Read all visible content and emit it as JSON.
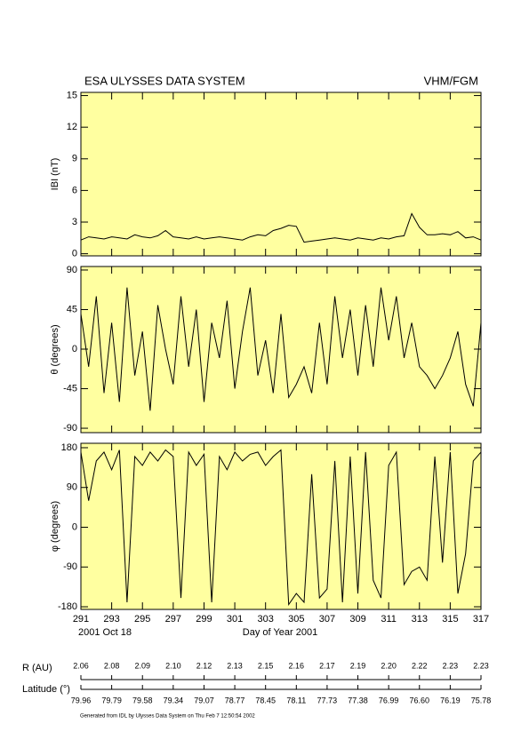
{
  "header": {
    "title": "ESA ULYSSES DATA SYSTEM",
    "instrument": "VHM/FGM"
  },
  "chart_data": [
    {
      "type": "line",
      "ylabel": "IBI (nT)",
      "xlim": [
        291,
        317
      ],
      "ylim": [
        -0.2,
        15.3
      ],
      "yticks": [
        0,
        3,
        6,
        9,
        12,
        15
      ],
      "x": [
        291,
        291.5,
        292,
        292.5,
        293,
        293.5,
        294,
        294.5,
        295,
        295.5,
        296,
        296.5,
        297,
        297.5,
        298,
        298.5,
        299,
        299.5,
        300,
        300.5,
        301,
        301.5,
        302,
        302.5,
        303,
        303.5,
        304,
        304.5,
        305,
        305.5,
        306,
        306.5,
        307,
        307.5,
        308,
        308.5,
        309,
        309.5,
        310,
        310.5,
        311,
        311.5,
        312,
        312.5,
        313,
        313.5,
        314,
        314.5,
        315,
        315.5,
        316,
        316.5,
        317
      ],
      "series": [
        {
          "color": "#000000",
          "values": [
            1.3,
            1.6,
            1.5,
            1.4,
            1.6,
            1.5,
            1.4,
            1.8,
            1.6,
            1.5,
            1.7,
            2.2,
            1.6,
            1.5,
            1.4,
            1.6,
            1.4,
            1.5,
            1.6,
            1.5,
            1.4,
            1.3,
            1.6,
            1.8,
            1.7,
            2.2,
            2.4,
            2.7,
            2.6,
            1.1,
            1.2,
            1.3,
            1.4,
            1.5,
            1.4,
            1.3,
            1.5,
            1.4,
            1.3,
            1.5,
            1.4,
            1.6,
            1.7,
            3.8,
            2.5,
            1.8,
            1.8,
            1.9,
            1.8,
            2.1,
            1.5,
            1.6,
            1.3
          ]
        }
      ]
    },
    {
      "type": "line",
      "ylabel": "θ (degrees)",
      "xlim": [
        291,
        317
      ],
      "ylim": [
        -95,
        94
      ],
      "yticks": [
        90,
        45,
        0,
        -45,
        -90
      ],
      "x": [
        291,
        291.5,
        292,
        292.5,
        293,
        293.5,
        294,
        294.5,
        295,
        295.5,
        296,
        296.5,
        297,
        297.5,
        298,
        298.5,
        299,
        299.5,
        300,
        300.5,
        301,
        301.5,
        302,
        302.5,
        303,
        303.5,
        304,
        304.5,
        305,
        305.5,
        306,
        306.5,
        307,
        307.5,
        308,
        308.5,
        309,
        309.5,
        310,
        310.5,
        311,
        311.5,
        312,
        312.5,
        313,
        313.5,
        314,
        314.5,
        315,
        315.5,
        316,
        316.5,
        317
      ],
      "series": [
        {
          "color": "#000000",
          "values": [
            40,
            -20,
            60,
            -50,
            30,
            -60,
            70,
            -30,
            20,
            -70,
            50,
            0,
            -40,
            60,
            -20,
            45,
            -60,
            30,
            -10,
            55,
            -45,
            20,
            70,
            -30,
            10,
            -50,
            40,
            -55,
            -40,
            -20,
            -50,
            30,
            -40,
            60,
            -10,
            45,
            -30,
            50,
            -20,
            70,
            10,
            60,
            -10,
            30,
            -20,
            -30,
            -45,
            -30,
            -10,
            20,
            -40,
            -65,
            30
          ]
        }
      ]
    },
    {
      "type": "line",
      "ylabel": "φ (degrees)",
      "xlabel": "Day of Year 2001",
      "annotation": "2001 Oct 18",
      "xlim": [
        291,
        317
      ],
      "ylim": [
        -186,
        190
      ],
      "yticks": [
        180,
        90,
        0,
        -90,
        -180
      ],
      "xticks": [
        291,
        293,
        295,
        297,
        299,
        301,
        303,
        305,
        307,
        309,
        311,
        313,
        315,
        317
      ],
      "x": [
        291,
        291.5,
        292,
        292.5,
        293,
        293.5,
        294,
        294.5,
        295,
        295.5,
        296,
        296.5,
        297,
        297.5,
        298,
        298.5,
        299,
        299.5,
        300,
        300.5,
        301,
        301.5,
        302,
        302.5,
        303,
        303.5,
        304,
        304.5,
        305,
        305.5,
        306,
        306.5,
        307,
        307.5,
        308,
        308.5,
        309,
        309.5,
        310,
        310.5,
        311,
        311.5,
        312,
        312.5,
        313,
        313.5,
        314,
        314.5,
        315,
        315.5,
        316,
        316.5,
        317
      ],
      "series": [
        {
          "color": "#000000",
          "values": [
            170,
            60,
            150,
            170,
            130,
            175,
            -170,
            160,
            140,
            170,
            150,
            175,
            160,
            -160,
            170,
            140,
            165,
            -170,
            160,
            130,
            170,
            150,
            165,
            170,
            140,
            160,
            175,
            -175,
            -150,
            -170,
            120,
            -160,
            -140,
            150,
            -170,
            160,
            -150,
            170,
            -120,
            -160,
            140,
            170,
            -130,
            -100,
            -90,
            -120,
            160,
            -80,
            170,
            -150,
            -60,
            150,
            170
          ]
        }
      ]
    }
  ],
  "ephemeris": {
    "r_label": "R (AU)",
    "lat_label": "Latitude (°)",
    "r_au": [
      2.06,
      2.08,
      2.09,
      {
        "value": 2.1,
        "label": "2.10"
      },
      2.12,
      2.13,
      2.15,
      2.16,
      2.17,
      2.19,
      {
        "value": 2.2,
        "label": "2.20"
      },
      2.22,
      2.23,
      2.23
    ],
    "latitude": [
      79.96,
      79.79,
      79.58,
      79.34,
      79.07,
      78.77,
      78.45,
      78.11,
      77.73,
      77.38,
      76.99,
      {
        "value": 76.6,
        "label": "76.60"
      },
      76.19,
      75.78
    ]
  },
  "footer": "Generated from IDL by Ulysses Data System on Thu Feb  7 12:50:54 2002"
}
